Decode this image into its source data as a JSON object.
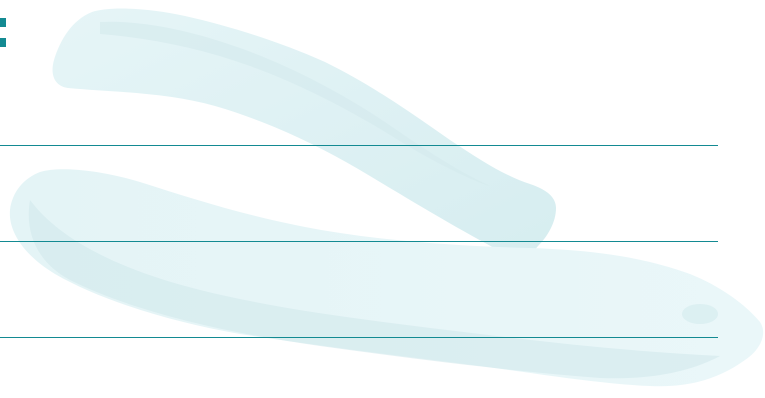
{
  "theme": {
    "accent": "#138a92",
    "watermark_light": "#e3f3f5",
    "watermark_mid": "#d4ecef",
    "watermark_shade": "#c9e3e6"
  },
  "background": {
    "icon": "sandal-soles-watermark-icon"
  },
  "header": {
    "icon": "corner-bracket-icon"
  },
  "ruled_lines": [
    {
      "id": "rule-1"
    },
    {
      "id": "rule-2"
    },
    {
      "id": "rule-3"
    }
  ]
}
